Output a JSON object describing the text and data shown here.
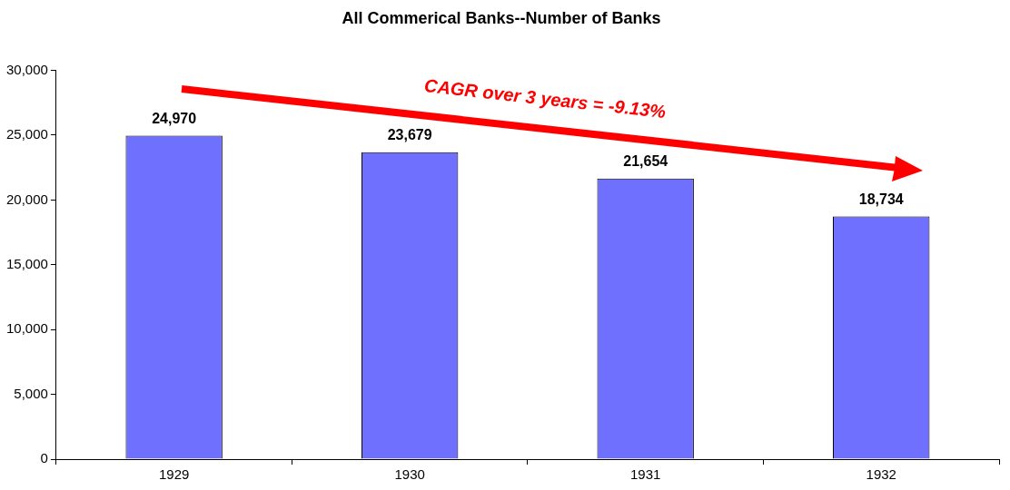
{
  "chart_data": {
    "type": "bar",
    "title": "All Commerical Banks--Number of Banks",
    "categories": [
      "1929",
      "1930",
      "1931",
      "1932"
    ],
    "values": [
      24970,
      23679,
      21654,
      18734
    ],
    "color": "#7070ff",
    "value_labels": [
      "24,970",
      "23,679",
      "21,654",
      "18,734"
    ],
    "ylim": [
      0,
      30000
    ],
    "yticks": [
      0,
      {
        "value": 5000,
        "label": "5,000"
      },
      {
        "value": 10000,
        "label": "10,000"
      },
      {
        "value": 15000,
        "label": "15,000"
      },
      {
        "value": 20000,
        "label": "20,000"
      },
      {
        "value": 25000,
        "label": "25,000"
      },
      {
        "value": 30000,
        "label": "30,000"
      }
    ],
    "grid": false,
    "annotations": [
      "CAGR over 3 years = -9.13%"
    ]
  }
}
